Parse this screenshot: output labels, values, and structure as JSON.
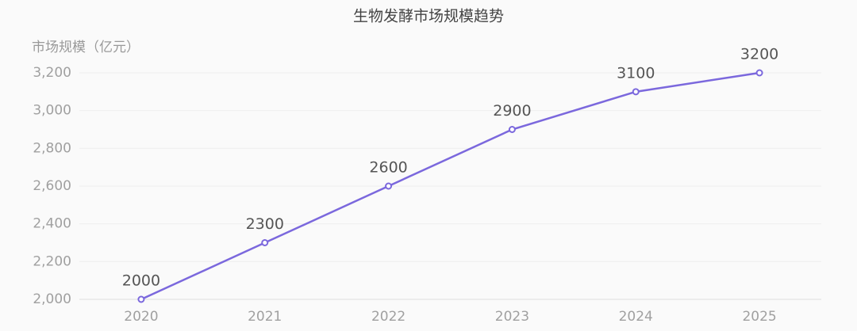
{
  "chart_data": {
    "type": "line",
    "title": "生物发酵市场规模趋势",
    "y_label": "市场规模（亿元）",
    "categories": [
      "2020",
      "2021",
      "2022",
      "2023",
      "2024",
      "2025"
    ],
    "series": [
      {
        "name": "市场规模",
        "color": "#7b68dd",
        "values": [
          2000,
          2300,
          2600,
          2900,
          3100,
          3200
        ]
      }
    ],
    "ylim": [
      2000,
      3200
    ],
    "yticks": [
      {
        "value": 2000,
        "label": "2,000"
      },
      {
        "value": 2200,
        "label": "2,200"
      },
      {
        "value": 2400,
        "label": "2,400"
      },
      {
        "value": 2600,
        "label": "2,600"
      },
      {
        "value": 2800,
        "label": "2,800"
      },
      {
        "value": 3000,
        "label": "3,000"
      },
      {
        "value": 3200,
        "label": "3,200"
      }
    ],
    "grid": true
  }
}
